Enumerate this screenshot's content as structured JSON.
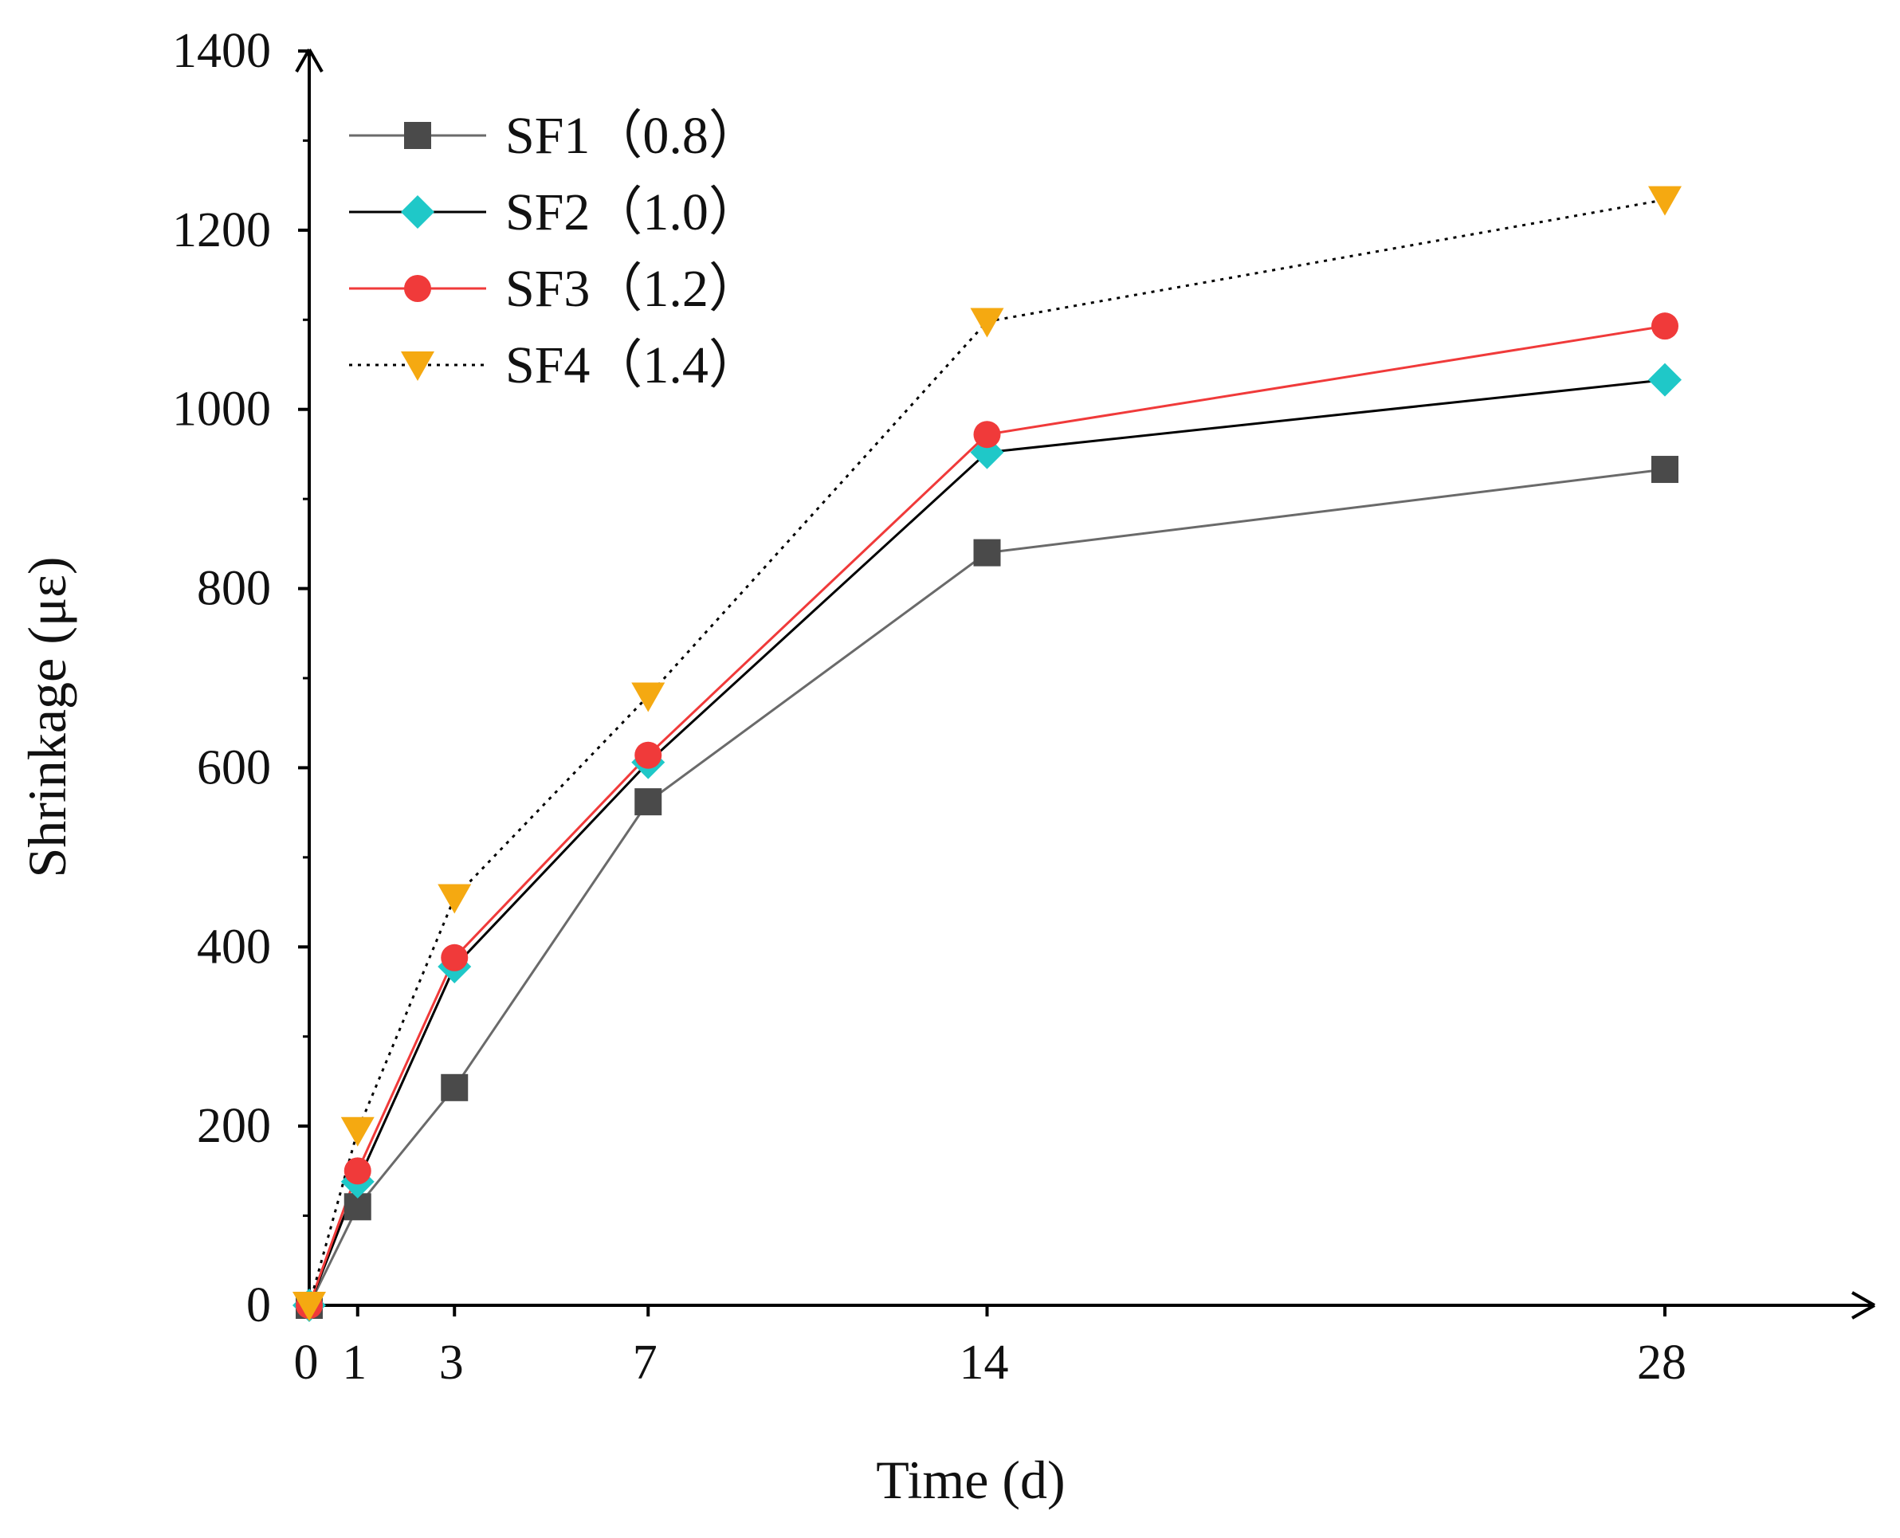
{
  "chart_data": {
    "type": "line",
    "title": "",
    "xlabel": "Time (d)",
    "ylabel": "Shrinkage (με)",
    "x": [
      0,
      1,
      3,
      7,
      14,
      28
    ],
    "x_ticks": [
      0,
      1,
      3,
      7,
      14,
      28
    ],
    "x_tick_labels": [
      "0",
      "1",
      "3",
      "7",
      "14",
      "28"
    ],
    "xlim": [
      0,
      32
    ],
    "ylim": [
      0,
      1400
    ],
    "y_ticks": [
      0,
      200,
      400,
      600,
      800,
      1000,
      1200,
      1400
    ],
    "y_tick_labels": [
      "0",
      "200",
      "400",
      "600",
      "800",
      "1000",
      "1200",
      "1400"
    ],
    "grid": false,
    "legend_position": "top-left",
    "series": [
      {
        "name": "SF1（0.8）",
        "values": [
          0,
          110,
          243,
          562,
          840,
          933
        ],
        "color": "#4a4a4a",
        "line_color": "#6a6a6a",
        "marker": "square",
        "line_style": "solid"
      },
      {
        "name": "SF2（1.0）",
        "values": [
          0,
          138,
          378,
          606,
          952,
          1033
        ],
        "color": "#1fc8c8",
        "line_color": "#000000",
        "marker": "diamond",
        "line_style": "solid"
      },
      {
        "name": "SF3（1.2）",
        "values": [
          0,
          150,
          388,
          614,
          972,
          1093
        ],
        "color": "#f03a3a",
        "line_color": "#f03a3a",
        "marker": "circle",
        "line_style": "solid"
      },
      {
        "name": "SF4（1.4）",
        "values": [
          0,
          195,
          455,
          680,
          1098,
          1234
        ],
        "color": "#f5a911",
        "line_color": "#000000",
        "marker": "triangle-down",
        "line_style": "dotted"
      }
    ]
  }
}
